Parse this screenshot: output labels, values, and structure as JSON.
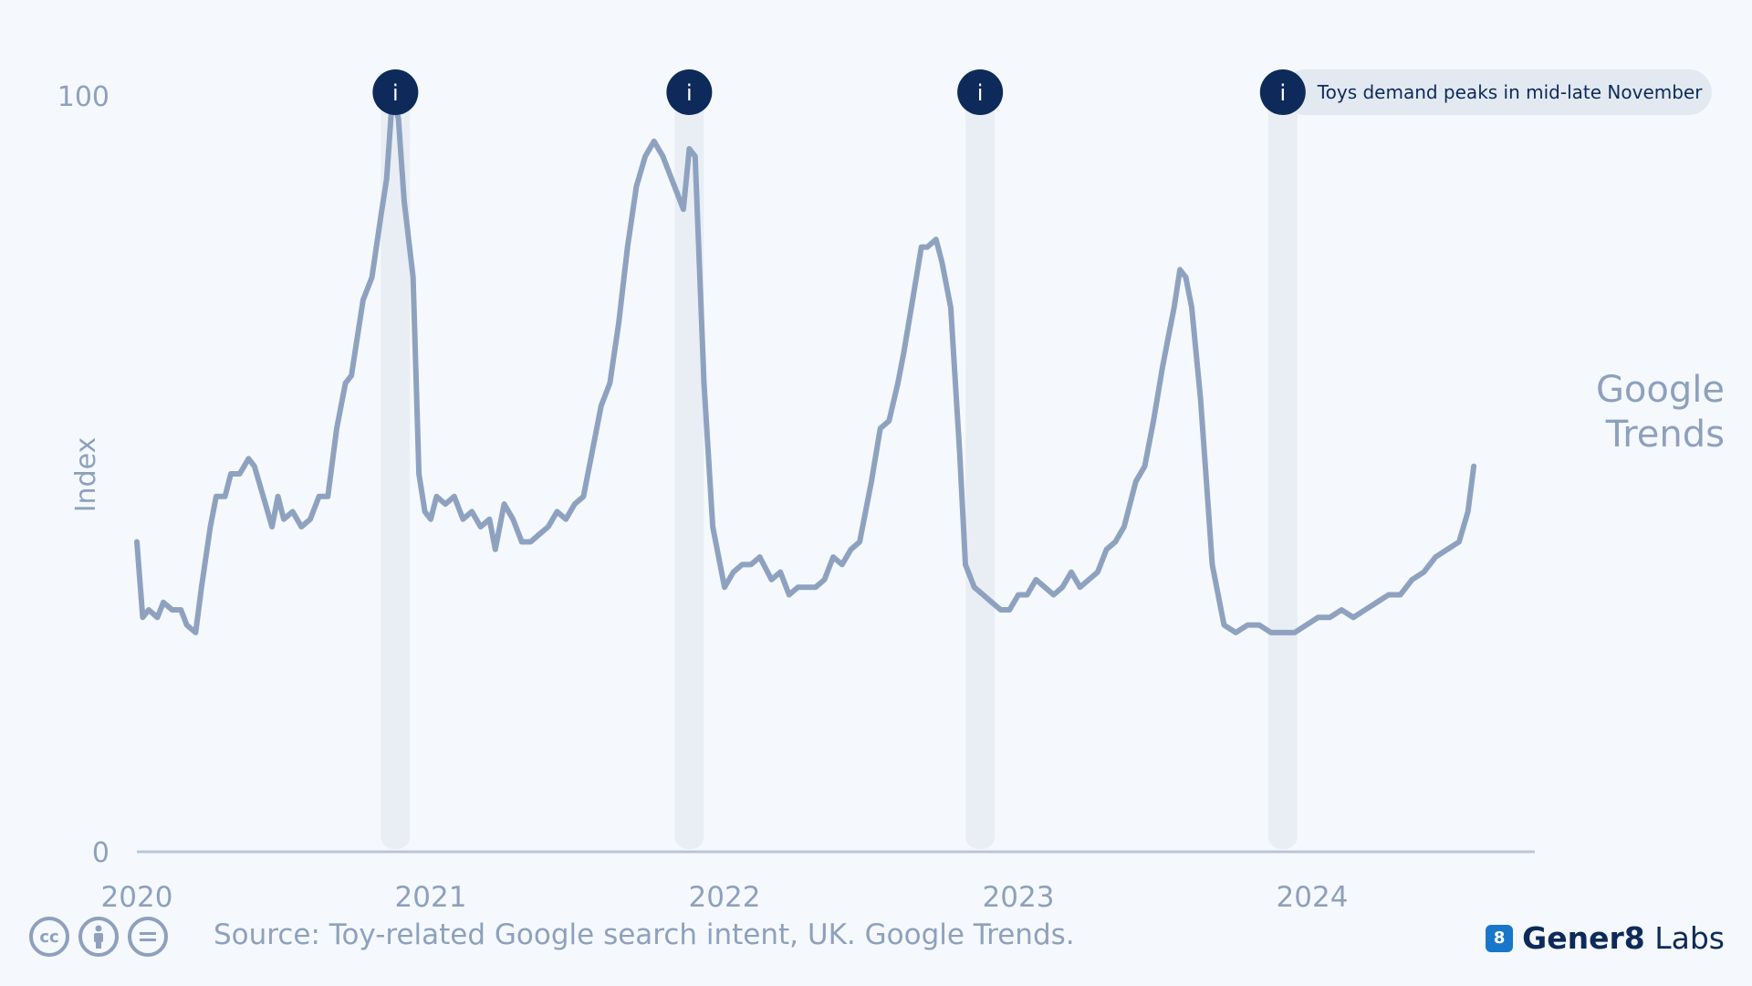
{
  "chart_data": {
    "type": "line",
    "title": "",
    "xlabel": "",
    "ylabel": "Index",
    "ylim": [
      0,
      100
    ],
    "yticks": [
      "100",
      "0"
    ],
    "xticks": [
      "2020",
      "2021",
      "2022",
      "2023",
      "2024"
    ],
    "series": [
      {
        "values": [
          [
            2020.0,
            41
          ],
          [
            2020.02,
            31
          ],
          [
            2020.04,
            32
          ],
          [
            2020.07,
            31
          ],
          [
            2020.09,
            33
          ],
          [
            2020.12,
            32
          ],
          [
            2020.15,
            32
          ],
          [
            2020.17,
            30
          ],
          [
            2020.2,
            29
          ],
          [
            2020.22,
            35
          ],
          [
            2020.25,
            43
          ],
          [
            2020.27,
            47
          ],
          [
            2020.3,
            47
          ],
          [
            2020.32,
            50
          ],
          [
            2020.35,
            50
          ],
          [
            2020.38,
            52
          ],
          [
            2020.4,
            51
          ],
          [
            2020.43,
            47
          ],
          [
            2020.46,
            43
          ],
          [
            2020.48,
            47
          ],
          [
            2020.5,
            44
          ],
          [
            2020.53,
            45
          ],
          [
            2020.56,
            43
          ],
          [
            2020.59,
            44
          ],
          [
            2020.62,
            47
          ],
          [
            2020.65,
            47
          ],
          [
            2020.68,
            56
          ],
          [
            2020.71,
            62
          ],
          [
            2020.73,
            63
          ],
          [
            2020.77,
            73
          ],
          [
            2020.8,
            76
          ],
          [
            2020.83,
            84
          ],
          [
            2020.85,
            89
          ],
          [
            2020.87,
            100
          ],
          [
            2020.89,
            97
          ],
          [
            2020.91,
            86
          ],
          [
            2020.94,
            76
          ],
          [
            2020.96,
            50
          ],
          [
            2020.98,
            45
          ],
          [
            2021.0,
            44
          ],
          [
            2021.02,
            47
          ],
          [
            2021.05,
            46
          ],
          [
            2021.08,
            47
          ],
          [
            2021.11,
            44
          ],
          [
            2021.14,
            45
          ],
          [
            2021.17,
            43
          ],
          [
            2021.2,
            44
          ],
          [
            2021.22,
            40
          ],
          [
            2021.25,
            46
          ],
          [
            2021.28,
            44
          ],
          [
            2021.31,
            41
          ],
          [
            2021.34,
            41
          ],
          [
            2021.37,
            42
          ],
          [
            2021.4,
            43
          ],
          [
            2021.43,
            45
          ],
          [
            2021.46,
            44
          ],
          [
            2021.49,
            46
          ],
          [
            2021.52,
            47
          ],
          [
            2021.55,
            53
          ],
          [
            2021.58,
            59
          ],
          [
            2021.61,
            62
          ],
          [
            2021.64,
            70
          ],
          [
            2021.67,
            80
          ],
          [
            2021.7,
            88
          ],
          [
            2021.73,
            92
          ],
          [
            2021.76,
            94
          ],
          [
            2021.79,
            92
          ],
          [
            2021.81,
            90
          ],
          [
            2021.84,
            87
          ],
          [
            2021.86,
            85
          ],
          [
            2021.88,
            93
          ],
          [
            2021.9,
            92
          ],
          [
            2021.93,
            62
          ],
          [
            2021.96,
            43
          ],
          [
            2022.0,
            35
          ],
          [
            2022.03,
            37
          ],
          [
            2022.06,
            38
          ],
          [
            2022.09,
            38
          ],
          [
            2022.12,
            39
          ],
          [
            2022.16,
            36
          ],
          [
            2022.19,
            37
          ],
          [
            2022.22,
            34
          ],
          [
            2022.25,
            35
          ],
          [
            2022.28,
            35
          ],
          [
            2022.31,
            35
          ],
          [
            2022.34,
            36
          ],
          [
            2022.37,
            39
          ],
          [
            2022.4,
            38
          ],
          [
            2022.43,
            40
          ],
          [
            2022.46,
            41
          ],
          [
            2022.5,
            49
          ],
          [
            2022.53,
            56
          ],
          [
            2022.56,
            57
          ],
          [
            2022.59,
            62
          ],
          [
            2022.61,
            66
          ],
          [
            2022.64,
            73
          ],
          [
            2022.67,
            80
          ],
          [
            2022.69,
            80
          ],
          [
            2022.72,
            81
          ],
          [
            2022.74,
            78
          ],
          [
            2022.77,
            72
          ],
          [
            2022.8,
            53
          ],
          [
            2022.82,
            38
          ],
          [
            2022.85,
            35
          ],
          [
            2022.88,
            34
          ],
          [
            2022.91,
            33
          ],
          [
            2022.94,
            32
          ],
          [
            2022.97,
            32
          ],
          [
            2023.0,
            34
          ],
          [
            2023.03,
            34
          ],
          [
            2023.06,
            36
          ],
          [
            2023.09,
            35
          ],
          [
            2023.12,
            34
          ],
          [
            2023.15,
            35
          ],
          [
            2023.18,
            37
          ],
          [
            2023.21,
            35
          ],
          [
            2023.24,
            36
          ],
          [
            2023.27,
            37
          ],
          [
            2023.3,
            40
          ],
          [
            2023.33,
            41
          ],
          [
            2023.36,
            43
          ],
          [
            2023.4,
            49
          ],
          [
            2023.43,
            51
          ],
          [
            2023.46,
            57
          ],
          [
            2023.49,
            64
          ],
          [
            2023.51,
            68
          ],
          [
            2023.53,
            72
          ],
          [
            2023.55,
            77
          ],
          [
            2023.57,
            76
          ],
          [
            2023.59,
            72
          ],
          [
            2023.62,
            60
          ],
          [
            2023.64,
            49
          ],
          [
            2023.66,
            38
          ],
          [
            2023.7,
            30
          ],
          [
            2023.74,
            29
          ],
          [
            2023.78,
            30
          ],
          [
            2023.82,
            30
          ],
          [
            2023.86,
            29
          ],
          [
            2023.9,
            29
          ],
          [
            2023.94,
            29
          ],
          [
            2023.98,
            30
          ],
          [
            2024.02,
            31
          ],
          [
            2024.06,
            31
          ],
          [
            2024.1,
            32
          ],
          [
            2024.14,
            31
          ],
          [
            2024.18,
            32
          ],
          [
            2024.22,
            33
          ],
          [
            2024.26,
            34
          ],
          [
            2024.3,
            34
          ],
          [
            2024.34,
            36
          ],
          [
            2024.38,
            37
          ],
          [
            2024.42,
            39
          ],
          [
            2024.46,
            40
          ],
          [
            2024.5,
            41
          ],
          [
            2024.53,
            45
          ],
          [
            2024.55,
            51
          ]
        ]
      }
    ],
    "peak_marker_x": [
      2020.88,
      2021.88,
      2022.87,
      2023.9
    ],
    "annotation": "Toys demand peaks in mid-late November",
    "marker_icon": "info-icon",
    "line_color": "#8ea2c0",
    "band_color": "#e9eef4",
    "marker_color": "#0d2a5a"
  },
  "side_label": [
    "Google",
    "Trends"
  ],
  "footer": {
    "cc_icons": [
      "cc-icon",
      "by-icon",
      "nd-icon"
    ],
    "source": "Source: Toy-related Google search intent, UK. Google Trends.",
    "logo_bold": "Gener8",
    "logo_light": "Labs"
  }
}
